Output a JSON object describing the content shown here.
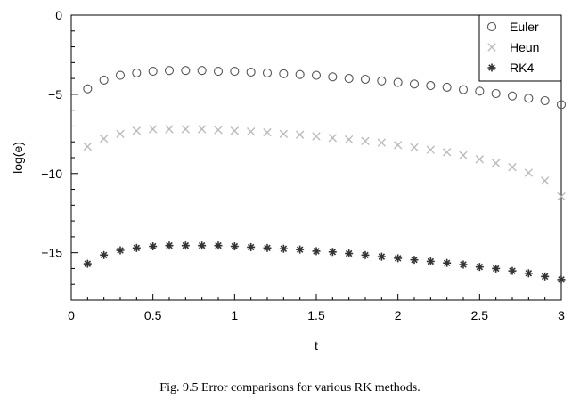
{
  "chart_data": {
    "type": "scatter",
    "title": "",
    "xlabel": "t",
    "ylabel": "log(e)",
    "xlim": [
      0,
      3
    ],
    "ylim": [
      -18,
      0
    ],
    "xticks": [
      "0",
      "0.5",
      "1",
      "1.5",
      "2",
      "2.5",
      "3"
    ],
    "xtick_values": [
      0,
      0.5,
      1,
      1.5,
      2,
      2.5,
      3
    ],
    "yticks": [
      "0",
      "−5",
      "−10",
      "−15"
    ],
    "ytick_values": [
      0,
      -5,
      -10,
      -15
    ],
    "grid": false,
    "legend_position": "top-right",
    "x": [
      0.1,
      0.2,
      0.3,
      0.4,
      0.5,
      0.6,
      0.7,
      0.8,
      0.9,
      1.0,
      1.1,
      1.2,
      1.3,
      1.4,
      1.5,
      1.6,
      1.7,
      1.8,
      1.9,
      2.0,
      2.1,
      2.2,
      2.3,
      2.4,
      2.5,
      2.6,
      2.7,
      2.8,
      2.9,
      3.0
    ],
    "series": [
      {
        "name": "Euler",
        "marker": "o",
        "color": "#555555",
        "values": [
          -4.65,
          -4.1,
          -3.8,
          -3.65,
          -3.55,
          -3.5,
          -3.5,
          -3.5,
          -3.55,
          -3.55,
          -3.6,
          -3.65,
          -3.7,
          -3.75,
          -3.8,
          -3.9,
          -4.0,
          -4.05,
          -4.15,
          -4.25,
          -4.35,
          -4.45,
          -4.55,
          -4.7,
          -4.8,
          -4.95,
          -5.1,
          -5.25,
          -5.4,
          -5.65
        ]
      },
      {
        "name": "Heun",
        "marker": "x",
        "color": "#bbbbbb",
        "values": [
          -8.3,
          -7.8,
          -7.5,
          -7.3,
          -7.2,
          -7.2,
          -7.2,
          -7.2,
          -7.25,
          -7.3,
          -7.35,
          -7.4,
          -7.5,
          -7.55,
          -7.65,
          -7.75,
          -7.85,
          -7.95,
          -8.05,
          -8.2,
          -8.35,
          -8.5,
          -8.65,
          -8.85,
          -9.1,
          -9.35,
          -9.6,
          -9.95,
          -10.45,
          -11.45
        ]
      },
      {
        "name": "RK4",
        "marker": "*",
        "color": "#333333",
        "values": [
          -15.7,
          -15.15,
          -14.85,
          -14.7,
          -14.6,
          -14.55,
          -14.55,
          -14.55,
          -14.55,
          -14.6,
          -14.65,
          -14.7,
          -14.75,
          -14.8,
          -14.9,
          -14.95,
          -15.05,
          -15.15,
          -15.25,
          -15.35,
          -15.45,
          -15.55,
          -15.65,
          -15.75,
          -15.9,
          -16.0,
          -16.15,
          -16.3,
          -16.5,
          -16.7
        ]
      }
    ]
  },
  "caption": {
    "text": "Fig. 9.5   Error comparisons for various RK methods."
  }
}
